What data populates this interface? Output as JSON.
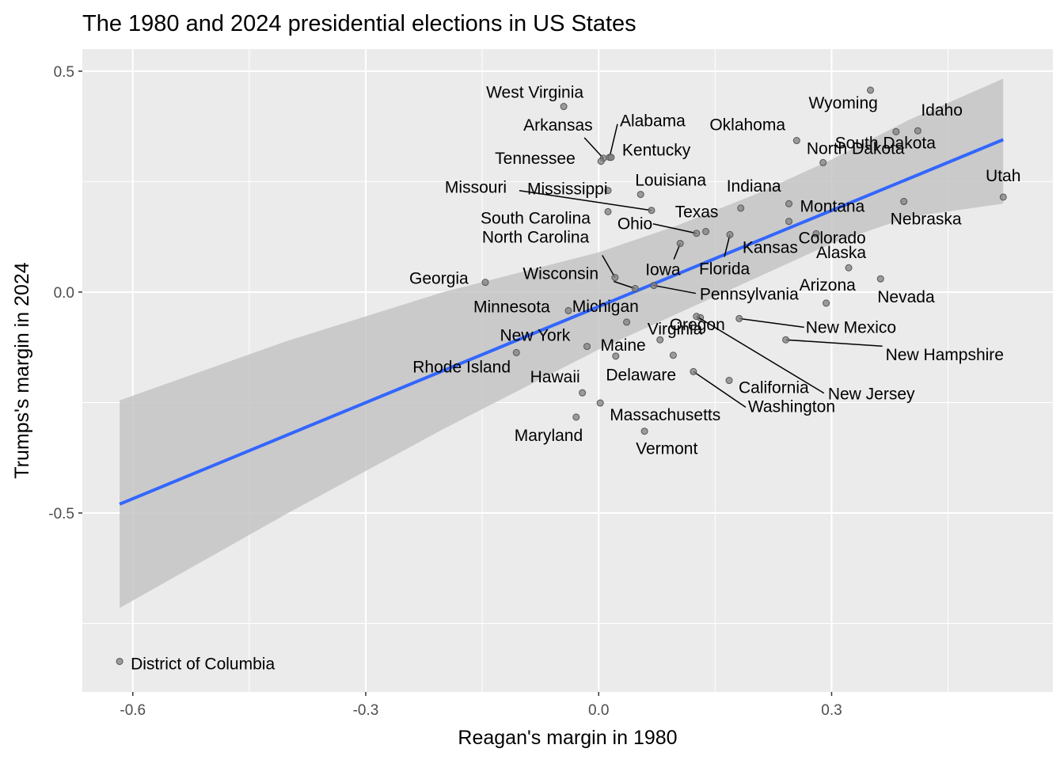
{
  "chart_data": {
    "type": "scatter",
    "title": "The 1980 and 2024 presidential elections in US States",
    "xlabel": "Reagan's margin in 1980",
    "ylabel": "Trumps's margin in 2024",
    "xlim": [
      -0.665,
      0.585
    ],
    "ylim": [
      -0.905,
      0.55
    ],
    "x_ticks": [
      -0.6,
      -0.3,
      0.0,
      0.3
    ],
    "x_tick_labels": [
      "-0.6",
      "-0.3",
      "0.0",
      "0.3"
    ],
    "y_ticks": [
      -0.5,
      0.0,
      0.5
    ],
    "y_tick_labels": [
      "-0.5",
      "0.0",
      "0.5"
    ],
    "grid": true,
    "panel_background": "#ebebeb",
    "fit": {
      "method": "lm",
      "color": "#3366ff",
      "ribbon_color": "#cccccc",
      "line": [
        [
          -0.617,
          -0.48
        ],
        [
          0.521,
          0.345
        ]
      ],
      "ribbon_upper": [
        [
          -0.617,
          -0.245
        ],
        [
          -0.4,
          -0.11
        ],
        [
          -0.2,
          0.0
        ],
        [
          0.0,
          0.09
        ],
        [
          0.1,
          0.15
        ],
        [
          0.2,
          0.22
        ],
        [
          0.3,
          0.3
        ],
        [
          0.4,
          0.39
        ],
        [
          0.521,
          0.483
        ]
      ],
      "ribbon_lower": [
        [
          -0.617,
          -0.715
        ],
        [
          -0.4,
          -0.5
        ],
        [
          -0.2,
          -0.31
        ],
        [
          0.0,
          -0.13
        ],
        [
          0.1,
          -0.05
        ],
        [
          0.2,
          0.03
        ],
        [
          0.3,
          0.11
        ],
        [
          0.4,
          0.17
        ],
        [
          0.521,
          0.2
        ]
      ]
    },
    "points": [
      {
        "name": "Utah",
        "x": 0.521,
        "y": 0.215
      },
      {
        "name": "Wyoming",
        "x": 0.35,
        "y": 0.457
      },
      {
        "name": "Idaho",
        "x": 0.411,
        "y": 0.365
      },
      {
        "name": "Nebraska",
        "x": 0.393,
        "y": 0.205
      },
      {
        "name": "North Dakota",
        "x": 0.383,
        "y": 0.363
      },
      {
        "name": "Nevada",
        "x": 0.363,
        "y": 0.03
      },
      {
        "name": "Alaska",
        "x": 0.322,
        "y": 0.055
      },
      {
        "name": "South Dakota",
        "x": 0.289,
        "y": 0.293
      },
      {
        "name": "Arizona",
        "x": 0.293,
        "y": -0.025
      },
      {
        "name": "Kansas",
        "x": 0.28,
        "y": 0.132
      },
      {
        "name": "Oklahoma",
        "x": 0.255,
        "y": 0.343
      },
      {
        "name": "Montana",
        "x": 0.245,
        "y": 0.2
      },
      {
        "name": "Colorado",
        "x": 0.245,
        "y": 0.16
      },
      {
        "name": "New Hampshire",
        "x": 0.241,
        "y": -0.108
      },
      {
        "name": "California",
        "x": 0.168,
        "y": -0.2
      },
      {
        "name": "Indiana",
        "x": 0.183,
        "y": 0.19
      },
      {
        "name": "New Mexico",
        "x": 0.181,
        "y": -0.06
      },
      {
        "name": "Florida",
        "x": 0.169,
        "y": 0.13
      },
      {
        "name": "Texas",
        "x": 0.138,
        "y": 0.137
      },
      {
        "name": "Ohio",
        "x": 0.126,
        "y": 0.133
      },
      {
        "name": "Iowa",
        "x": 0.105,
        "y": 0.11
      },
      {
        "name": "Virginia",
        "x": 0.131,
        "y": -0.058
      },
      {
        "name": "New Jersey",
        "x": 0.126,
        "y": -0.055
      },
      {
        "name": "Washington",
        "x": 0.122,
        "y": -0.18
      },
      {
        "name": "Oregon",
        "x": 0.079,
        "y": -0.108
      },
      {
        "name": "Massachusetts",
        "x": 0.002,
        "y": -0.251
      },
      {
        "name": "Delaware",
        "x": 0.096,
        "y": -0.143
      },
      {
        "name": "Vermont",
        "x": 0.059,
        "y": -0.315
      },
      {
        "name": "Pennsylvania",
        "x": 0.071,
        "y": 0.015
      },
      {
        "name": "Wisconsin",
        "x": 0.047,
        "y": 0.008
      },
      {
        "name": "North Carolina",
        "x": 0.021,
        "y": 0.033
      },
      {
        "name": "Maine",
        "x": 0.036,
        "y": -0.068
      },
      {
        "name": "Michigan",
        "x": 0.022,
        "y": -0.145
      },
      {
        "name": "Louisiana",
        "x": 0.054,
        "y": 0.221
      },
      {
        "name": "Missouri",
        "x": 0.068,
        "y": 0.185
      },
      {
        "name": "Mississippi",
        "x": 0.012,
        "y": 0.23
      },
      {
        "name": "South Carolina",
        "x": 0.012,
        "y": 0.182
      },
      {
        "name": "Alabama",
        "x": 0.014,
        "y": 0.305
      },
      {
        "name": "Kentucky",
        "x": 0.016,
        "y": 0.305
      },
      {
        "name": "Arkansas",
        "x": 0.006,
        "y": 0.303
      },
      {
        "name": "Tennessee",
        "x": 0.003,
        "y": 0.296
      },
      {
        "name": "Minnesota",
        "x": -0.039,
        "y": -0.042
      },
      {
        "name": "New York",
        "x": -0.015,
        "y": -0.123
      },
      {
        "name": "Hawaii",
        "x": -0.021,
        "y": -0.228
      },
      {
        "name": "Maryland",
        "x": -0.029,
        "y": -0.283
      },
      {
        "name": "West Virginia",
        "x": -0.045,
        "y": 0.42
      },
      {
        "name": "Georgia",
        "x": -0.146,
        "y": 0.022
      },
      {
        "name": "Rhode Island",
        "x": -0.106,
        "y": -0.137
      },
      {
        "name": "District of Columbia",
        "x": -0.617,
        "y": -0.836
      }
    ],
    "point_color": "#808080",
    "label_color": "#000000"
  }
}
